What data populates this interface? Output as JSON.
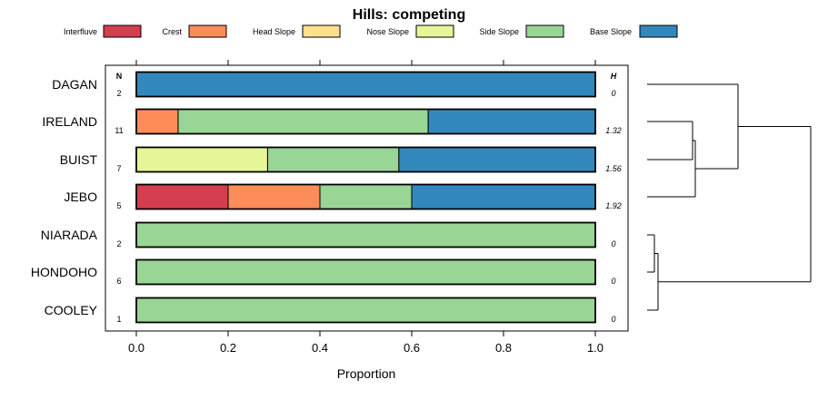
{
  "chart_data": {
    "type": "bar",
    "orientation": "horizontal",
    "stacked": true,
    "title": "Hills: competing",
    "xlabel": "Proportion",
    "ylabel": "",
    "xlim": [
      0,
      1
    ],
    "xticks": [
      "0.0",
      "0.2",
      "0.4",
      "0.6",
      "0.8",
      "1.0"
    ],
    "n_header": "N",
    "h_header": "H",
    "legend": [
      {
        "name": "Interfluve",
        "color": "#d53e4f"
      },
      {
        "name": "Crest",
        "color": "#fc8d59"
      },
      {
        "name": "Head Slope",
        "color": "#fee08b"
      },
      {
        "name": "Nose Slope",
        "color": "#e6f598"
      },
      {
        "name": "Side Slope",
        "color": "#99d594"
      },
      {
        "name": "Base Slope",
        "color": "#3288bd"
      }
    ],
    "categories": [
      "DAGAN",
      "IRELAND",
      "BUIST",
      "JEBO",
      "NIARADA",
      "HONDOHO",
      "COOLEY"
    ],
    "n": [
      "2",
      "11",
      "7",
      "5",
      "2",
      "6",
      "1"
    ],
    "h": [
      "0",
      "1.32",
      "1.56",
      "1.92",
      "0",
      "0",
      "0"
    ],
    "series": [
      {
        "name": "Interfluve",
        "values": [
          0,
          0,
          0,
          0.2,
          0,
          0,
          0
        ]
      },
      {
        "name": "Crest",
        "values": [
          0,
          0.091,
          0,
          0.2,
          0,
          0,
          0
        ]
      },
      {
        "name": "Head Slope",
        "values": [
          0,
          0,
          0,
          0,
          0,
          0,
          0
        ]
      },
      {
        "name": "Nose Slope",
        "values": [
          0,
          0,
          0.286,
          0,
          0,
          0,
          0
        ]
      },
      {
        "name": "Side Slope",
        "values": [
          0,
          0.545,
          0.286,
          0.2,
          1,
          1,
          1
        ]
      },
      {
        "name": "Base Slope",
        "values": [
          1,
          0.364,
          0.428,
          0.4,
          0,
          0,
          0
        ]
      }
    ],
    "dendrogram": {
      "orientation": "right",
      "leaves": [
        "DAGAN",
        "IRELAND",
        "BUIST",
        "JEBO",
        "NIARADA",
        "HONDOHO",
        "COOLEY"
      ],
      "merges": [
        {
          "a": "NIARADA",
          "b": "HONDOHO",
          "height": 0.08
        },
        {
          "a": "IRELAND",
          "b": "BUIST",
          "height": 0.5
        },
        {
          "a": "M1",
          "b": "COOLEY",
          "height": 0.12
        },
        {
          "a": "M2",
          "b": "JEBO",
          "height": 0.53
        },
        {
          "a": "DAGAN",
          "b": "M4",
          "height": 1.0
        },
        {
          "a": "M5",
          "b": "M3",
          "height": 1.8
        }
      ]
    }
  }
}
